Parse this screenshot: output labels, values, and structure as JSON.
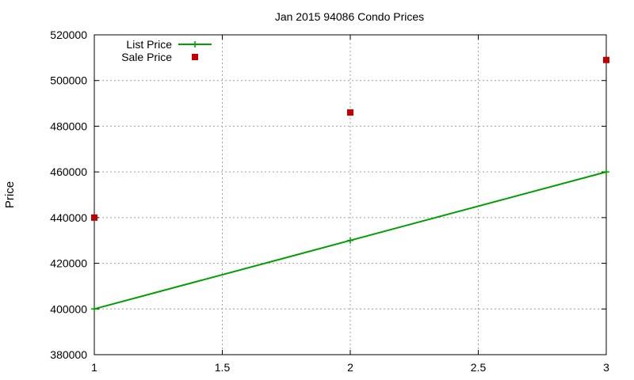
{
  "chart_data": {
    "type": "line",
    "title": "Jan 2015 94086 Condo Prices",
    "xlabel": "",
    "ylabel": "Price",
    "xlim": [
      1,
      3
    ],
    "ylim": [
      380000,
      520000
    ],
    "x_ticks": [
      "1",
      "1.5",
      "2",
      "2.5",
      "3"
    ],
    "x_tick_values": [
      1,
      1.5,
      2,
      2.5,
      3
    ],
    "y_ticks": [
      "380000",
      "400000",
      "420000",
      "440000",
      "460000",
      "480000",
      "500000",
      "520000"
    ],
    "y_tick_values": [
      380000,
      400000,
      420000,
      440000,
      460000,
      480000,
      500000,
      520000
    ],
    "grid": true,
    "legend_position": "top-left",
    "series": [
      {
        "name": "List Price",
        "style": "line+cross",
        "color": "#009e00",
        "x": [
          1,
          2,
          3
        ],
        "y": [
          400000,
          430000,
          460000
        ]
      },
      {
        "name": "Sale Price",
        "style": "square-points",
        "color": "#c00000",
        "x": [
          1,
          2,
          3
        ],
        "y": [
          440000,
          486000,
          509000
        ]
      }
    ]
  }
}
